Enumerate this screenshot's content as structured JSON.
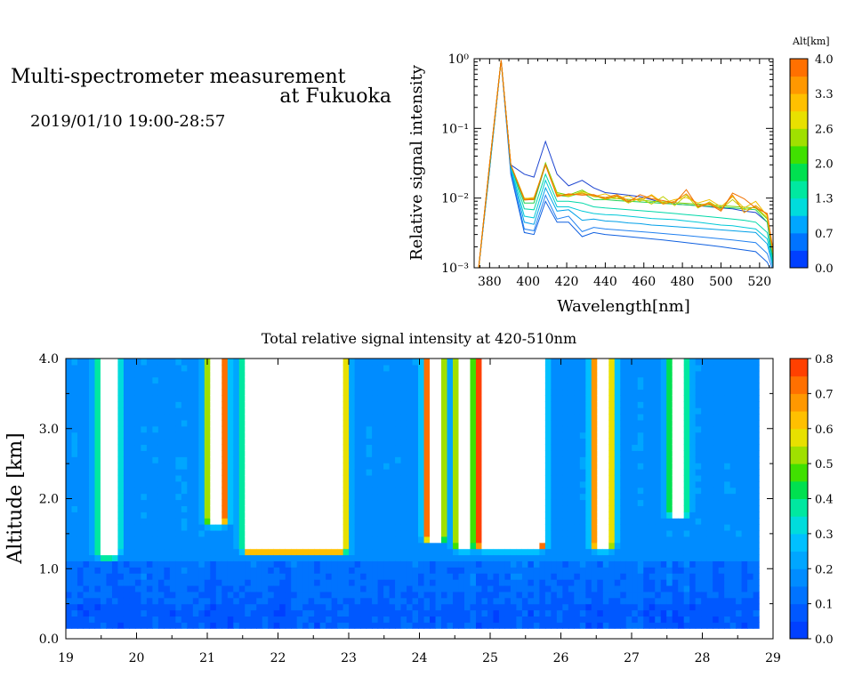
{
  "header": {
    "title_line1": "Multi-spectrometer measurement",
    "title_line2": "at Fukuoka",
    "datetime": "2019/01/10 19:00-28:57"
  },
  "chart_data": [
    {
      "type": "line",
      "ylabel": "Relative signal intensity",
      "xlabel": "Wavelength[nm]",
      "xlim": [
        372,
        527
      ],
      "ylim": [
        0.001,
        1
      ],
      "yscale": "log",
      "x_ticks": [
        380,
        400,
        420,
        440,
        460,
        480,
        500,
        520
      ],
      "x_tick_labels": [
        "380",
        "400",
        "420",
        "440",
        "460",
        "480",
        "500",
        "520"
      ],
      "y_ticks": [
        0.001,
        0.01,
        0.1,
        1
      ],
      "y_tick_labels": [
        "10⁻³",
        "10⁻²",
        "10⁻¹",
        "10⁰"
      ],
      "x": [
        374,
        380,
        386,
        391,
        398,
        403,
        409,
        415,
        421,
        428,
        434,
        440,
        446,
        452,
        458,
        464,
        470,
        476,
        482,
        488,
        494,
        500,
        506,
        512,
        518,
        524,
        527
      ],
      "colorbar": {
        "label": "Alt[km]",
        "tick_labels": [
          "0.0",
          "0.7",
          "1.3",
          "2.0",
          "2.6",
          "3.3",
          "4.0"
        ],
        "colors": [
          "#0040ff",
          "#0073ff",
          "#00a6ff",
          "#00dcdc",
          "#00e8a0",
          "#00e050",
          "#40e000",
          "#a0e000",
          "#e8e000",
          "#ffc000",
          "#ff9800",
          "#ff7000"
        ]
      },
      "series": [
        {
          "color": "#1c44d0",
          "values": [
            0.0008,
            0.03,
            0.95,
            0.03,
            0.022,
            0.02,
            0.065,
            0.022,
            0.015,
            0.018,
            0.014,
            0.012,
            0.0115,
            0.011,
            0.0105,
            0.0095,
            0.0085,
            0.0082,
            0.008,
            0.0078,
            0.0075,
            0.0072,
            0.007,
            0.0065,
            0.0062,
            0.0045,
            0.0012
          ]
        },
        {
          "color": "#1060e0",
          "values": [
            0.0008,
            0.025,
            0.95,
            0.022,
            0.0032,
            0.003,
            0.009,
            0.0045,
            0.0045,
            0.0028,
            0.0032,
            0.003,
            0.0029,
            0.0028,
            0.0027,
            0.0026,
            0.0025,
            0.0024,
            0.0023,
            0.0022,
            0.0021,
            0.002,
            0.0019,
            0.0018,
            0.0017,
            0.0012,
            0.0008
          ]
        },
        {
          "color": "#2080f0",
          "values": [
            0.0008,
            0.025,
            0.95,
            0.024,
            0.0036,
            0.0034,
            0.011,
            0.005,
            0.0055,
            0.0033,
            0.0038,
            0.0036,
            0.0035,
            0.0034,
            0.0033,
            0.0032,
            0.0031,
            0.003,
            0.0029,
            0.0028,
            0.0027,
            0.0026,
            0.0025,
            0.0024,
            0.0023,
            0.0016,
            0.0009
          ]
        },
        {
          "color": "#00a0e8",
          "values": [
            0.0008,
            0.026,
            0.95,
            0.026,
            0.0045,
            0.0042,
            0.014,
            0.0065,
            0.0068,
            0.0048,
            0.005,
            0.0047,
            0.0046,
            0.0044,
            0.0043,
            0.0041,
            0.004,
            0.0039,
            0.0038,
            0.0037,
            0.0036,
            0.0035,
            0.0034,
            0.0033,
            0.0032,
            0.0022,
            0.001
          ]
        },
        {
          "color": "#00c8d8",
          "values": [
            0.0008,
            0.027,
            0.95,
            0.028,
            0.0055,
            0.0052,
            0.018,
            0.0075,
            0.0075,
            0.0065,
            0.006,
            0.0058,
            0.0057,
            0.0055,
            0.0053,
            0.0051,
            0.005,
            0.0049,
            0.0047,
            0.0045,
            0.0043,
            0.0041,
            0.004,
            0.0038,
            0.0036,
            0.0026,
            0.0011
          ]
        },
        {
          "color": "#00d8a8",
          "values": [
            0.0008,
            0.028,
            0.95,
            0.03,
            0.007,
            0.0068,
            0.022,
            0.009,
            0.009,
            0.0085,
            0.0075,
            0.0072,
            0.007,
            0.0068,
            0.0066,
            0.0064,
            0.0062,
            0.006,
            0.0058,
            0.0056,
            0.0054,
            0.0052,
            0.005,
            0.0048,
            0.0045,
            0.0032,
            0.0012
          ]
        },
        {
          "color": "#20d050",
          "values": [
            0.0008,
            0.029,
            0.95,
            0.03,
            0.0085,
            0.0085,
            0.03,
            0.011,
            0.0105,
            0.012,
            0.0095,
            0.0095,
            0.0092,
            0.009,
            0.0088,
            0.0086,
            0.0084,
            0.0082,
            0.008,
            0.0078,
            0.0076,
            0.0074,
            0.0072,
            0.007,
            0.0068,
            0.0045,
            0.0014
          ]
        },
        {
          "color": "#70d000",
          "values": [
            0.0008,
            0.03,
            0.95,
            0.03,
            0.0095,
            0.0095,
            0.032,
            0.012,
            0.011,
            0.013,
            0.0105,
            0.0102,
            0.0098,
            0.0096,
            0.0094,
            0.009,
            0.0088,
            0.0086,
            0.0084,
            0.0082,
            0.008,
            0.0078,
            0.0076,
            0.0074,
            0.0072,
            0.005,
            0.0015
          ]
        },
        {
          "color": "#c0d000",
          "values": [
            0.0008,
            0.03,
            0.95,
            0.03,
            0.01,
            0.0098,
            0.03,
            0.0115,
            0.0105,
            0.0125,
            0.011,
            0.0095,
            0.0105,
            0.0085,
            0.01,
            0.0082,
            0.0105,
            0.0078,
            0.011,
            0.0072,
            0.0088,
            0.007,
            0.0095,
            0.0068,
            0.0075,
            0.0052,
            0.0016
          ]
        },
        {
          "color": "#f0c000",
          "values": [
            0.0008,
            0.03,
            0.95,
            0.03,
            0.0098,
            0.0102,
            0.03,
            0.0112,
            0.0108,
            0.012,
            0.0105,
            0.0115,
            0.0098,
            0.0108,
            0.009,
            0.0112,
            0.0085,
            0.0095,
            0.0102,
            0.0085,
            0.0095,
            0.0075,
            0.0105,
            0.0072,
            0.009,
            0.0055,
            0.0016
          ]
        },
        {
          "color": "#f09000",
          "values": [
            0.0008,
            0.03,
            0.95,
            0.03,
            0.0096,
            0.0098,
            0.03,
            0.0108,
            0.0112,
            0.0115,
            0.0108,
            0.0102,
            0.0112,
            0.0092,
            0.0098,
            0.0108,
            0.0082,
            0.009,
            0.0115,
            0.0078,
            0.0085,
            0.0068,
            0.011,
            0.0062,
            0.0078,
            0.0058,
            0.0017
          ]
        },
        {
          "color": "#f07000",
          "values": [
            0.0008,
            0.03,
            0.95,
            0.03,
            0.0094,
            0.0096,
            0.03,
            0.0105,
            0.0115,
            0.011,
            0.0112,
            0.0098,
            0.0108,
            0.0088,
            0.0112,
            0.0098,
            0.0092,
            0.0085,
            0.0132,
            0.0075,
            0.0082,
            0.0065,
            0.0118,
            0.0098,
            0.0072,
            0.006,
            0.0018
          ]
        }
      ]
    },
    {
      "type": "heatmap",
      "title": "Total relative signal intensity at 420-510nm",
      "ylabel": "Altitude [km]",
      "xlim": [
        19,
        29
      ],
      "ylim": [
        0,
        4
      ],
      "x_ticks": [
        19,
        20,
        21,
        22,
        23,
        24,
        25,
        26,
        27,
        28,
        29
      ],
      "x_tick_labels": [
        "19",
        "20",
        "21",
        "22",
        "23",
        "24",
        "25",
        "26",
        "27",
        "28",
        "29"
      ],
      "y_ticks": [
        0,
        1,
        2,
        3,
        4
      ],
      "y_tick_labels": [
        "0.0",
        "1.0",
        "2.0",
        "3.0",
        "4.0"
      ],
      "data_xrange": [
        19,
        28.8
      ],
      "data_yrange": [
        0.15,
        4.0
      ],
      "colorbar": {
        "tick_labels": [
          "0.0",
          "0.1",
          "0.2",
          "0.3",
          "0.4",
          "0.5",
          "0.6",
          "0.7",
          "0.8"
        ],
        "colors": [
          "#0040ff",
          "#0058ff",
          "#0073ff",
          "#008cff",
          "#00a6ff",
          "#00c0ff",
          "#00dcdc",
          "#00e8a0",
          "#00e050",
          "#40e000",
          "#a0e000",
          "#e8e000",
          "#ffc000",
          "#ff9800",
          "#ff7000",
          "#ff4000"
        ]
      },
      "background_levels": {
        "below_0_5km": 0.08,
        "0_5_to_1_5km": 0.12,
        "above_1_5km": 0.17
      },
      "cloud_columns": [
        {
          "start": 19.52,
          "end": 19.68,
          "base_km": 1.25,
          "top_km": 4.0
        },
        {
          "start": 21.05,
          "end": 21.22,
          "base_km": 1.7,
          "top_km": 4.0
        },
        {
          "start": 21.57,
          "end": 22.92,
          "base_km": 1.3,
          "top_km": 4.0
        },
        {
          "start": 24.13,
          "end": 24.3,
          "base_km": 1.45,
          "top_km": 4.0
        },
        {
          "start": 24.56,
          "end": 24.7,
          "base_km": 1.35,
          "top_km": 4.0
        },
        {
          "start": 24.86,
          "end": 25.72,
          "base_km": 1.35,
          "top_km": 4.0
        },
        {
          "start": 26.5,
          "end": 26.68,
          "base_km": 1.35,
          "top_km": 4.0
        },
        {
          "start": 27.6,
          "end": 27.7,
          "base_km": 1.8,
          "top_km": 4.0
        }
      ]
    }
  ]
}
